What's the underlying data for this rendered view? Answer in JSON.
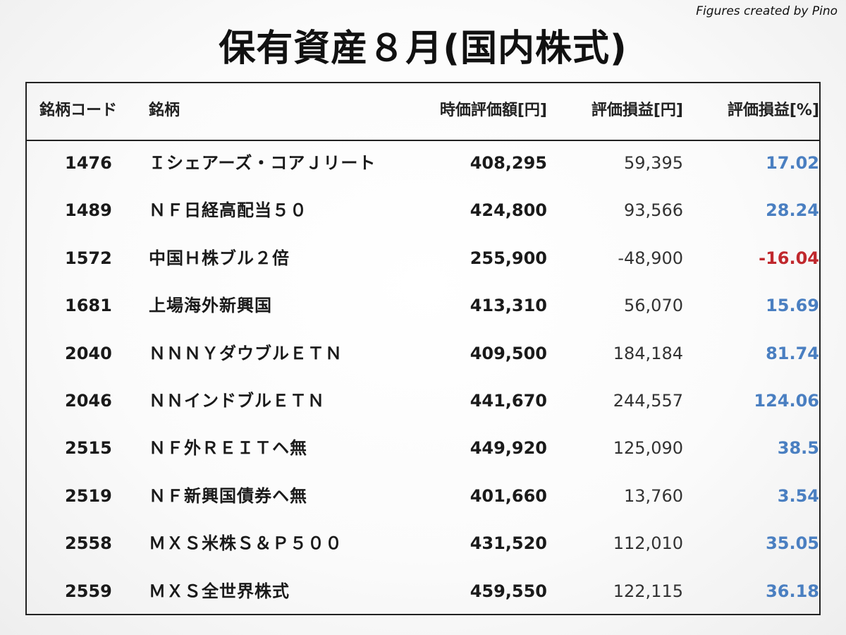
{
  "credit": "Figures created by Pino",
  "title": "保有資産８月(国内株式)",
  "colors": {
    "positive": "#4a7fc1",
    "negative": "#c0282d"
  },
  "headers": {
    "code": "銘柄コード",
    "name": "銘柄",
    "market_value": "時価評価額[円]",
    "pl_yen": "評価損益[円]",
    "pl_pct": "評価損益[%]"
  },
  "rows": [
    {
      "code": "1476",
      "name": "Ｉシェアーズ・コアＪリート",
      "market_value": "408,295",
      "pl_yen": "59,395",
      "pl_pct": "17.02",
      "sign": "positive"
    },
    {
      "code": "1489",
      "name": "ＮＦ日経高配当５０",
      "market_value": "424,800",
      "pl_yen": "93,566",
      "pl_pct": "28.24",
      "sign": "positive"
    },
    {
      "code": "1572",
      "name": "中国Ｈ株ブル２倍",
      "market_value": "255,900",
      "pl_yen": "-48,900",
      "pl_pct": "-16.04",
      "sign": "negative"
    },
    {
      "code": "1681",
      "name": "上場海外新興国",
      "market_value": "413,310",
      "pl_yen": "56,070",
      "pl_pct": "15.69",
      "sign": "positive"
    },
    {
      "code": "2040",
      "name": "ＮＮＮＹダウブルＥＴＮ",
      "market_value": "409,500",
      "pl_yen": "184,184",
      "pl_pct": "81.74",
      "sign": "positive"
    },
    {
      "code": "2046",
      "name": "ＮＮインドブルＥＴＮ",
      "market_value": "441,670",
      "pl_yen": "244,557",
      "pl_pct": "124.06",
      "sign": "positive"
    },
    {
      "code": "2515",
      "name": "ＮＦ外ＲＥＩＴヘ無",
      "market_value": "449,920",
      "pl_yen": "125,090",
      "pl_pct": "38.5",
      "sign": "positive"
    },
    {
      "code": "2519",
      "name": "ＮＦ新興国債券ヘ無",
      "market_value": "401,660",
      "pl_yen": "13,760",
      "pl_pct": "3.54",
      "sign": "positive"
    },
    {
      "code": "2558",
      "name": "ＭＸＳ米株Ｓ＆Ｐ５００",
      "market_value": "431,520",
      "pl_yen": "112,010",
      "pl_pct": "35.05",
      "sign": "positive"
    },
    {
      "code": "2559",
      "name": "ＭＸＳ全世界株式",
      "market_value": "459,550",
      "pl_yen": "122,115",
      "pl_pct": "36.18",
      "sign": "positive"
    }
  ]
}
